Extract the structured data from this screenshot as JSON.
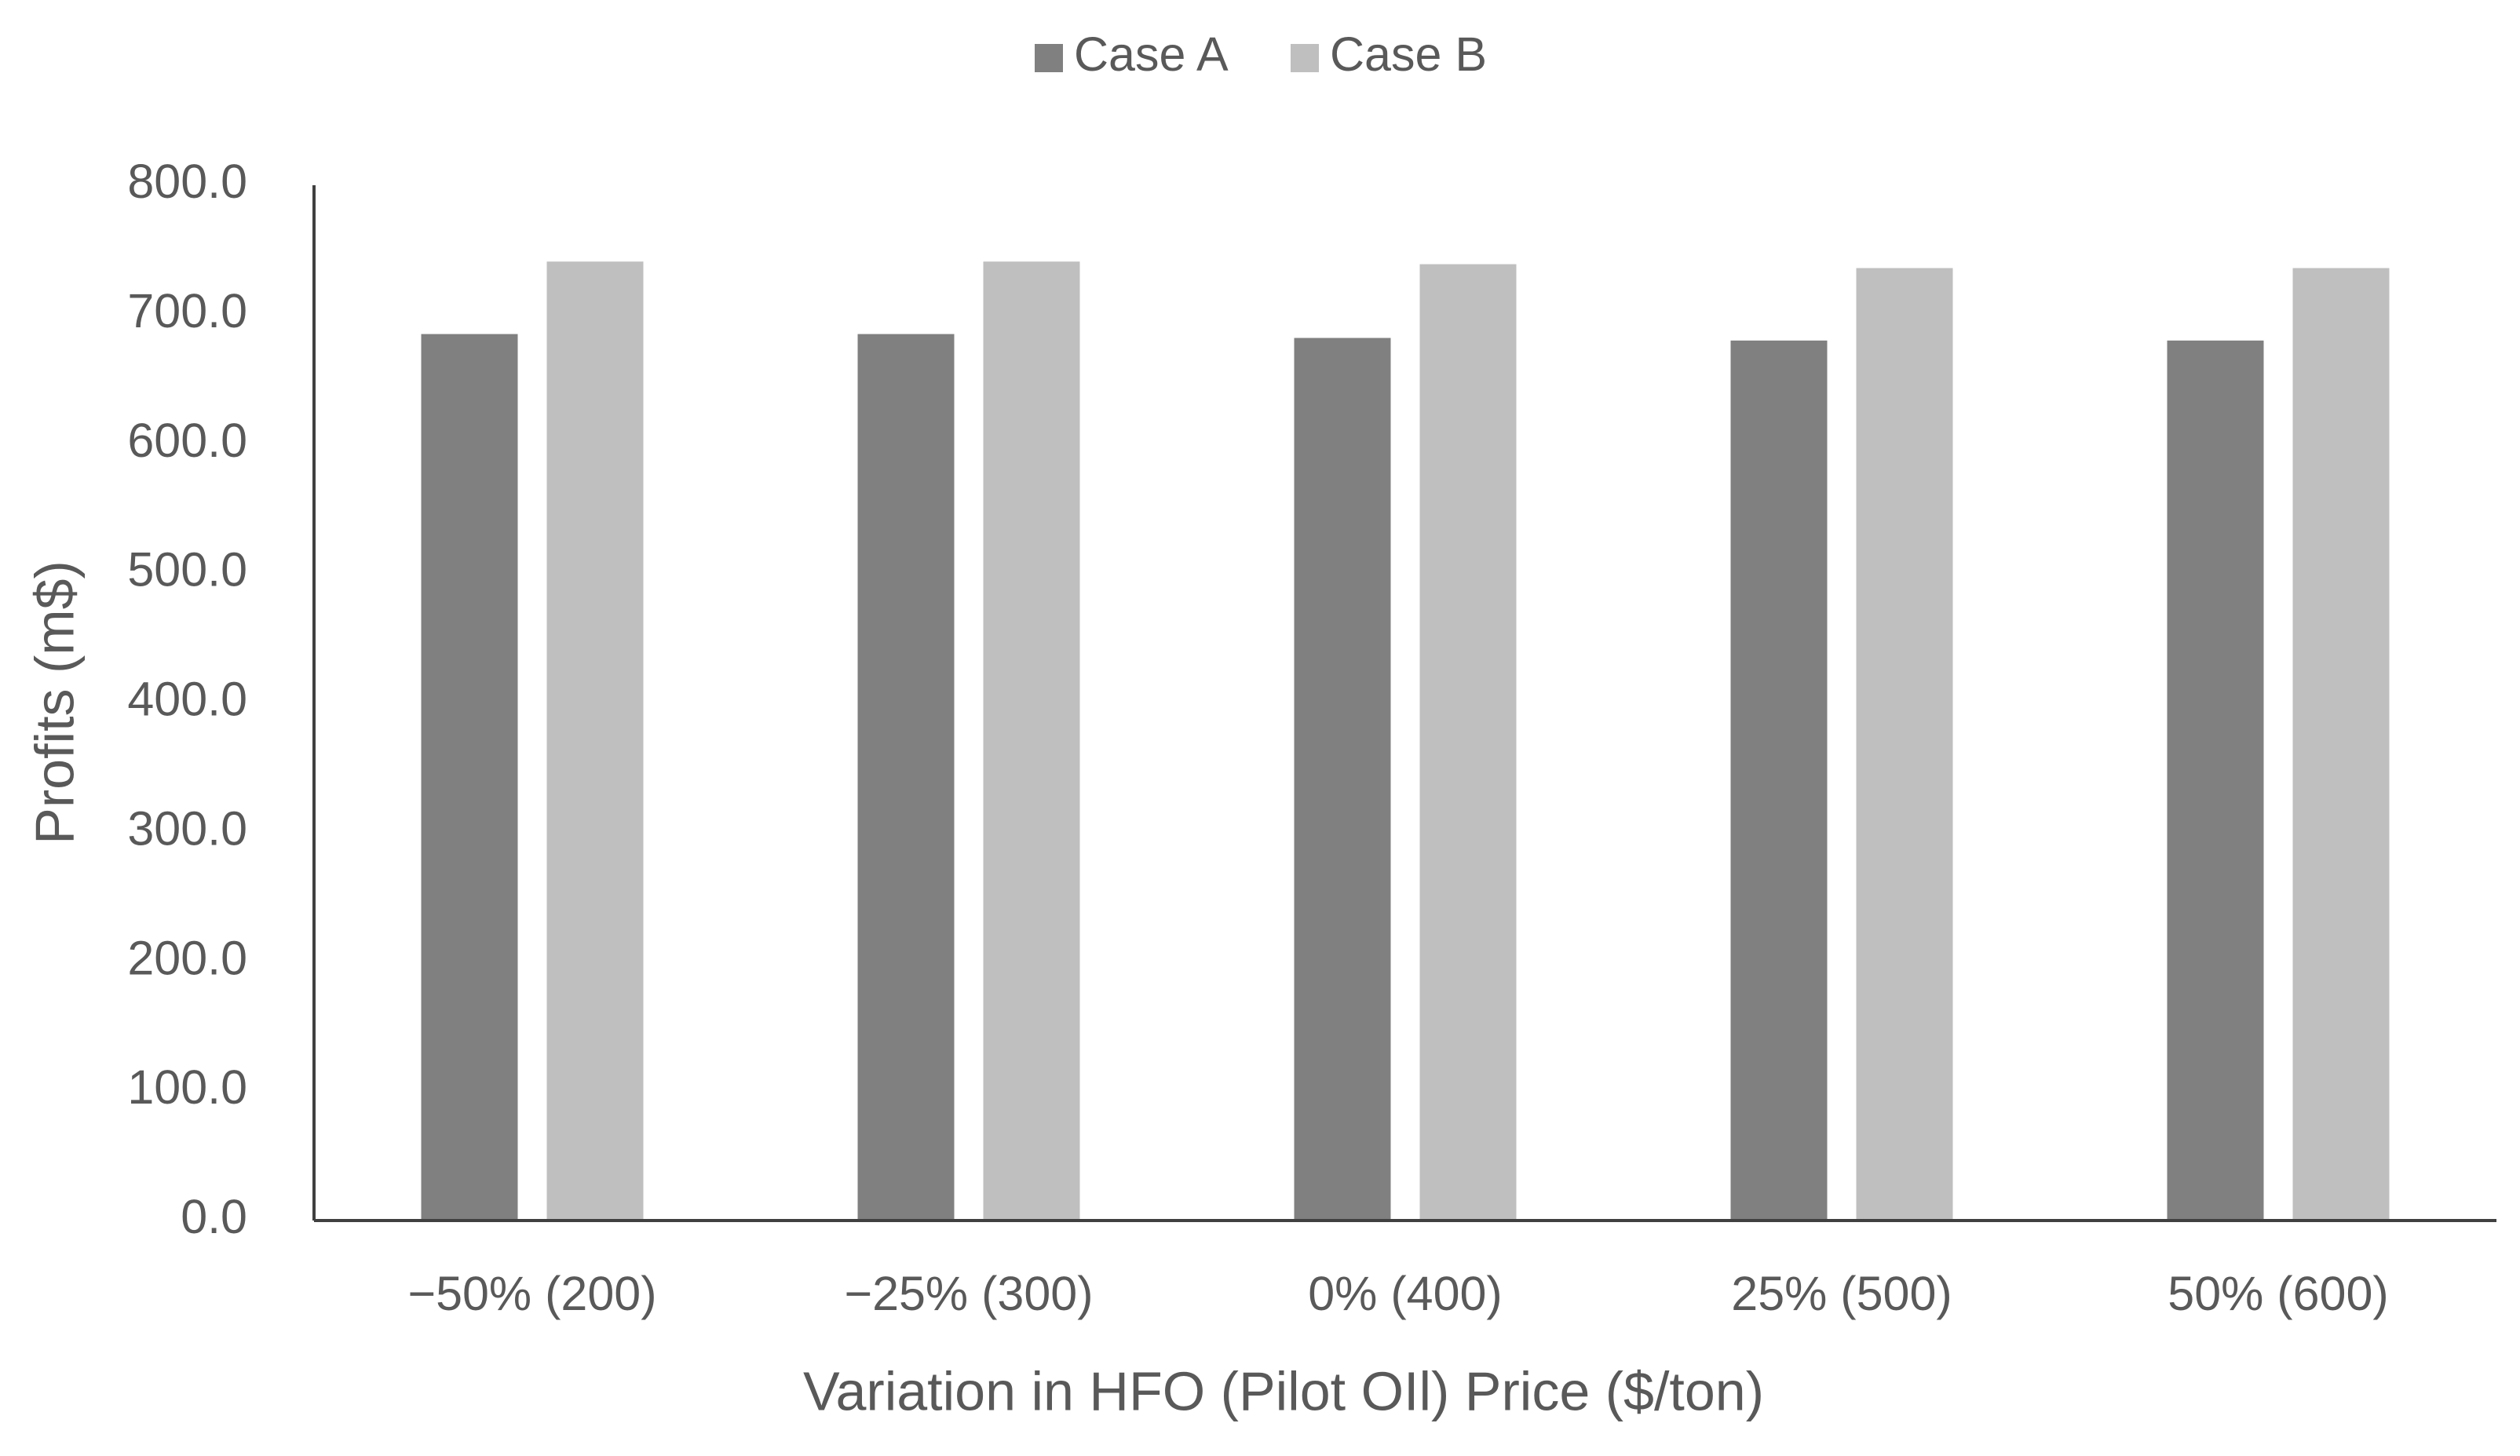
{
  "chart_data": {
    "type": "bar",
    "x_label": "Variation in HFO (Pilot OIl) Price ($/ton)",
    "y_label": "Profits (m$)",
    "categories": [
      "−50% (200)",
      "−25% (300)",
      "0% (400)",
      "25% (500)",
      "50% (600)"
    ],
    "series": [
      {
        "name": "Case A",
        "color": "#808080",
        "values": [
          685,
          685,
          682,
          680,
          680
        ]
      },
      {
        "name": "Case B",
        "color": "#bfbfbf",
        "values": [
          741,
          741,
          739,
          736,
          736
        ]
      }
    ],
    "ylim": [
      0,
      800
    ],
    "yticks": [
      {
        "value": 0,
        "label": "0.0"
      },
      {
        "value": 100,
        "label": "100.0"
      },
      {
        "value": 200,
        "label": "200.0"
      },
      {
        "value": 300,
        "label": "300.0"
      },
      {
        "value": 400,
        "label": "400.0"
      },
      {
        "value": 500,
        "label": "500.0"
      },
      {
        "value": 600,
        "label": "600.0"
      },
      {
        "value": 700,
        "label": "700.0"
      },
      {
        "value": 800,
        "label": "800.0"
      }
    ],
    "legend": "top"
  }
}
